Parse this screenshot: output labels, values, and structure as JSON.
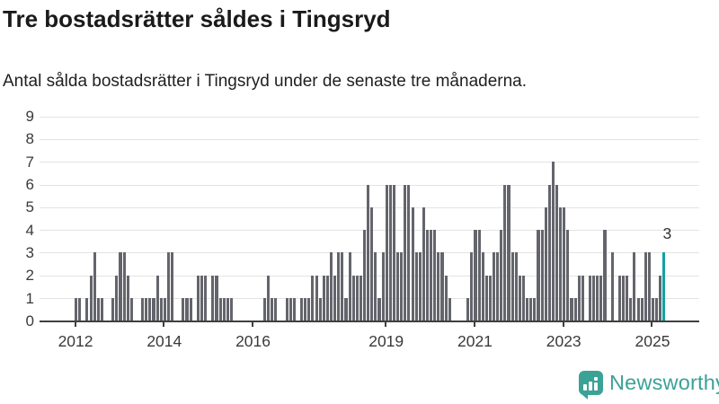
{
  "header": {
    "title": "Tre bostadsrätter såldes i Tingsryd",
    "subtitle": "Antal sålda bostadsrätter i Tingsryd under de senaste tre månaderna."
  },
  "footer": {
    "brand": "Newsworthy"
  },
  "chart_data": {
    "type": "bar",
    "title": "Tre bostadsrätter såldes i Tingsryd",
    "subtitle": "Antal sålda bostadsrätter i Tingsryd under de senaste tre månaderna.",
    "ylim": [
      0,
      9
    ],
    "yticks": [
      "0",
      "1",
      "2",
      "3",
      "4",
      "5",
      "6",
      "7",
      "8",
      "9"
    ],
    "grid": true,
    "unit": "sålda bostadsrätter per 3 månader",
    "series": [
      {
        "year": 2011,
        "start_month": 4,
        "values": [
          0,
          0,
          0,
          0,
          0,
          0,
          0,
          0,
          0
        ]
      },
      {
        "year": 2012,
        "start_month": 1,
        "values": [
          1,
          1,
          0,
          1,
          2,
          3,
          1,
          1,
          0,
          0,
          1,
          2
        ]
      },
      {
        "year": 2013,
        "start_month": 1,
        "values": [
          3,
          3,
          2,
          1,
          0,
          0,
          1,
          1,
          1,
          1,
          2,
          1
        ]
      },
      {
        "year": 2014,
        "start_month": 1,
        "values": [
          1,
          3,
          3,
          0,
          0,
          1,
          1,
          1,
          0,
          2,
          2,
          2
        ]
      },
      {
        "year": 2015,
        "start_month": 1,
        "values": [
          0,
          2,
          2,
          1,
          1,
          1,
          1,
          0,
          0,
          0,
          0,
          0
        ]
      },
      {
        "year": 2016,
        "start_month": 1,
        "values": [
          0,
          0,
          0,
          1,
          2,
          1,
          1,
          0,
          0,
          1,
          1,
          1
        ]
      },
      {
        "year": 2017,
        "start_month": 1,
        "values": [
          0,
          1,
          1,
          1,
          2,
          2,
          1,
          2,
          2,
          3,
          2,
          3
        ]
      },
      {
        "year": 2018,
        "start_month": 1,
        "values": [
          3,
          1,
          3,
          2,
          2,
          2,
          4,
          6,
          5,
          3,
          1,
          3
        ]
      },
      {
        "year": 2019,
        "start_month": 1,
        "values": [
          6,
          6,
          6,
          3,
          3,
          6,
          6,
          5,
          3,
          3,
          5,
          4
        ]
      },
      {
        "year": 2020,
        "start_month": 1,
        "values": [
          4,
          4,
          3,
          3,
          2,
          1,
          0,
          0,
          0,
          0,
          1,
          3
        ]
      },
      {
        "year": 2021,
        "start_month": 1,
        "values": [
          4,
          4,
          3,
          2,
          2,
          3,
          3,
          4,
          6,
          6,
          3,
          3
        ]
      },
      {
        "year": 2022,
        "start_month": 1,
        "values": [
          2,
          2,
          1,
          1,
          1,
          4,
          4,
          5,
          6,
          7,
          6,
          5
        ]
      },
      {
        "year": 2023,
        "start_month": 1,
        "values": [
          5,
          4,
          1,
          1,
          2,
          2,
          0,
          2,
          2,
          2,
          2,
          4
        ]
      },
      {
        "year": 2024,
        "start_month": 1,
        "values": [
          0,
          3,
          0,
          2,
          2,
          2,
          1,
          3,
          1,
          1,
          3,
          3
        ]
      },
      {
        "year": 2025,
        "start_month": 1,
        "values": [
          1,
          1,
          2,
          3
        ]
      }
    ],
    "xticks": [
      {
        "label": "2012",
        "month_index": 9
      },
      {
        "label": "2014",
        "month_index": 33
      },
      {
        "label": "2016",
        "month_index": 57
      },
      {
        "label": "2019",
        "month_index": 93
      },
      {
        "label": "2021",
        "month_index": 117
      },
      {
        "label": "2023",
        "month_index": 141
      },
      {
        "label": "2025",
        "month_index": 165
      }
    ],
    "highlight": {
      "month_index": 168,
      "value": 3,
      "annotation": "3"
    },
    "legend": "none",
    "colors": {
      "bar": "#64656c",
      "highlight": "#12a1a1",
      "gridline": "#e3e3e3",
      "axis": "#3f3f3f",
      "labels": "#3a3a3a",
      "brand": "#3ba296"
    }
  }
}
